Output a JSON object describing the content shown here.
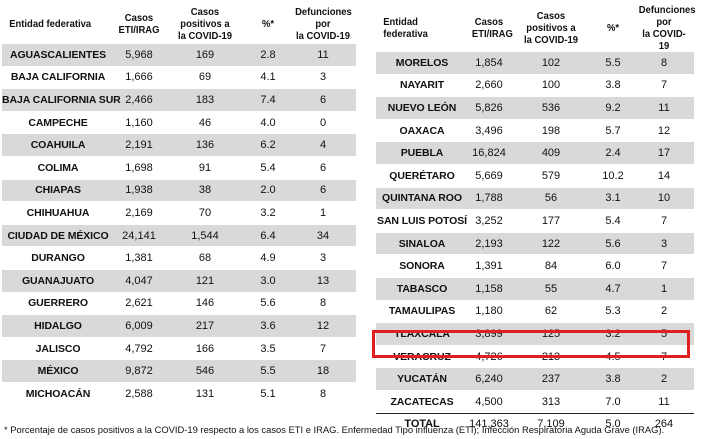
{
  "headers": {
    "entidad": "Entidad federativa",
    "casos_1": "Casos",
    "casos_2": "ETI/IRAG",
    "positivos_1": "Casos positivos a",
    "positivos_2": "la COVID-19",
    "pct": "%*",
    "def_1": "Defunciones por",
    "def_2": "la COVID-19"
  },
  "left_rows": [
    {
      "entidad": "AGUASCALIENTES",
      "casos": "5,968",
      "positivos": "169",
      "pct": "2.8",
      "defunciones": "11"
    },
    {
      "entidad": "BAJA CALIFORNIA",
      "casos": "1,666",
      "positivos": "69",
      "pct": "4.1",
      "defunciones": "3"
    },
    {
      "entidad": "BAJA CALIFORNIA SUR",
      "casos": "2,466",
      "positivos": "183",
      "pct": "7.4",
      "defunciones": "6"
    },
    {
      "entidad": "CAMPECHE",
      "casos": "1,160",
      "positivos": "46",
      "pct": "4.0",
      "defunciones": "0"
    },
    {
      "entidad": "COAHUILA",
      "casos": "2,191",
      "positivos": "136",
      "pct": "6.2",
      "defunciones": "4"
    },
    {
      "entidad": "COLIMA",
      "casos": "1,698",
      "positivos": "91",
      "pct": "5.4",
      "defunciones": "6"
    },
    {
      "entidad": "CHIAPAS",
      "casos": "1,938",
      "positivos": "38",
      "pct": "2.0",
      "defunciones": "6"
    },
    {
      "entidad": "CHIHUAHUA",
      "casos": "2,169",
      "positivos": "70",
      "pct": "3.2",
      "defunciones": "1"
    },
    {
      "entidad": "CIUDAD DE MÉXICO",
      "casos": "24,141",
      "positivos": "1,544",
      "pct": "6.4",
      "defunciones": "34"
    },
    {
      "entidad": "DURANGO",
      "casos": "1,381",
      "positivos": "68",
      "pct": "4.9",
      "defunciones": "3"
    },
    {
      "entidad": "GUANAJUATO",
      "casos": "4,047",
      "positivos": "121",
      "pct": "3.0",
      "defunciones": "13"
    },
    {
      "entidad": "GUERRERO",
      "casos": "2,621",
      "positivos": "146",
      "pct": "5.6",
      "defunciones": "8"
    },
    {
      "entidad": "HIDALGO",
      "casos": "6,009",
      "positivos": "217",
      "pct": "3.6",
      "defunciones": "12"
    },
    {
      "entidad": "JALISCO",
      "casos": "4,792",
      "positivos": "166",
      "pct": "3.5",
      "defunciones": "7"
    },
    {
      "entidad": "MÉXICO",
      "casos": "9,872",
      "positivos": "546",
      "pct": "5.5",
      "defunciones": "18"
    },
    {
      "entidad": "MICHOACÁN",
      "casos": "2,588",
      "positivos": "131",
      "pct": "5.1",
      "defunciones": "8"
    }
  ],
  "right_rows": [
    {
      "entidad": "MORELOS",
      "casos": "1,854",
      "positivos": "102",
      "pct": "5.5",
      "defunciones": "8"
    },
    {
      "entidad": "NAYARIT",
      "casos": "2,660",
      "positivos": "100",
      "pct": "3.8",
      "defunciones": "7"
    },
    {
      "entidad": "NUEVO LEÓN",
      "casos": "5,826",
      "positivos": "536",
      "pct": "9.2",
      "defunciones": "11"
    },
    {
      "entidad": "OAXACA",
      "casos": "3,496",
      "positivos": "198",
      "pct": "5.7",
      "defunciones": "12"
    },
    {
      "entidad": "PUEBLA",
      "casos": "16,824",
      "positivos": "409",
      "pct": "2.4",
      "defunciones": "17"
    },
    {
      "entidad": "QUERÉTARO",
      "casos": "5,669",
      "positivos": "579",
      "pct": "10.2",
      "defunciones": "14"
    },
    {
      "entidad": "QUINTANA ROO",
      "casos": "1,788",
      "positivos": "56",
      "pct": "3.1",
      "defunciones": "10"
    },
    {
      "entidad": "SAN LUIS POTOSÍ",
      "casos": "3,252",
      "positivos": "177",
      "pct": "5.4",
      "defunciones": "7"
    },
    {
      "entidad": "SINALOA",
      "casos": "2,193",
      "positivos": "122",
      "pct": "5.6",
      "defunciones": "3"
    },
    {
      "entidad": "SONORA",
      "casos": "1,391",
      "positivos": "84",
      "pct": "6.0",
      "defunciones": "7"
    },
    {
      "entidad": "TABASCO",
      "casos": "1,158",
      "positivos": "55",
      "pct": "4.7",
      "defunciones": "1"
    },
    {
      "entidad": "TAMAULIPAS",
      "casos": "1,180",
      "positivos": "62",
      "pct": "5.3",
      "defunciones": "2"
    },
    {
      "entidad": "TLAXCALA",
      "casos": "3,899",
      "positivos": "125",
      "pct": "3.2",
      "defunciones": "5"
    },
    {
      "entidad": "VERACRUZ",
      "casos": "4,726",
      "positivos": "213",
      "pct": "4.5",
      "defunciones": "7"
    },
    {
      "entidad": "YUCATÁN",
      "casos": "6,240",
      "positivos": "237",
      "pct": "3.8",
      "defunciones": "2"
    },
    {
      "entidad": "ZACATECAS",
      "casos": "4,500",
      "positivos": "313",
      "pct": "7.0",
      "defunciones": "11"
    }
  ],
  "total": {
    "entidad": "TOTAL",
    "casos": "141,363",
    "positivos": "7,109",
    "pct": "5.0",
    "defunciones": "264"
  },
  "highlighted_row": "VERACRUZ",
  "highlight_color": "#e02020",
  "footnote": "* Porcentaje de casos positivos a la COVID-19 respecto a los casos ETI e IRAG. Enfermedad Tipo influenza (ETI); Infección Respiratoria Aguda Grave (IRAG)."
}
